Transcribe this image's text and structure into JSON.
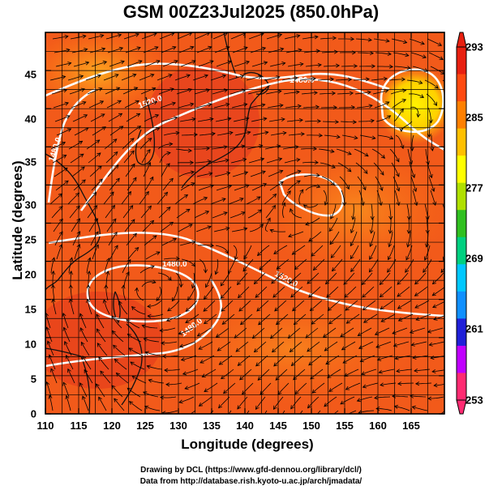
{
  "title": "GSM 00Z23Jul2025 (850.0hPa)",
  "x_axis": {
    "label": "Longitude (degrees)",
    "ticks": [
      "110",
      "115",
      "120",
      "125",
      "130",
      "135",
      "140",
      "145",
      "150",
      "155",
      "160",
      "165"
    ],
    "range": [
      110,
      170
    ]
  },
  "y_axis": {
    "label": "Latitude (degrees)",
    "ticks": [
      "0",
      "5",
      "10",
      "15",
      "20",
      "25",
      "30",
      "35",
      "40",
      "45"
    ],
    "range": [
      0,
      50
    ]
  },
  "contour_labels": [
    "1480.0",
    "1520.0",
    "1480.0",
    "1480.0",
    "1520.0",
    "1480.0"
  ],
  "colorbar": {
    "labels": [
      "293",
      "285",
      "277",
      "269",
      "261",
      "253"
    ],
    "min": 253,
    "max": 293,
    "colors": [
      "#ff2b72",
      "#c000ff",
      "#2020d8",
      "#1090ff",
      "#00c8ff",
      "#00d080",
      "#30c020",
      "#b0e000",
      "#ffff00",
      "#ffc000",
      "#ff8000",
      "#ff4a10",
      "#e82010"
    ]
  },
  "footer": {
    "line1": "Drawing by DCL (https://www.gfd-dennou.org/library/dcl/)",
    "line2": "Data from http://database.rish.kyoto-u.ac.jp/arch/jmadata/"
  },
  "chart_data": {
    "type": "map",
    "title": "GSM 00Z23Jul2025 (850.0hPa)",
    "xlabel": "Longitude (degrees)",
    "ylabel": "Latitude (degrees)",
    "xlim": [
      110,
      170
    ],
    "ylim": [
      0,
      50
    ],
    "colorbar_range": [
      253,
      293
    ],
    "contour_labels": [
      "1480.0",
      "1520.0",
      "1480.0",
      "1480.0",
      "1520.0",
      "1480.0"
    ],
    "grid": true
  }
}
